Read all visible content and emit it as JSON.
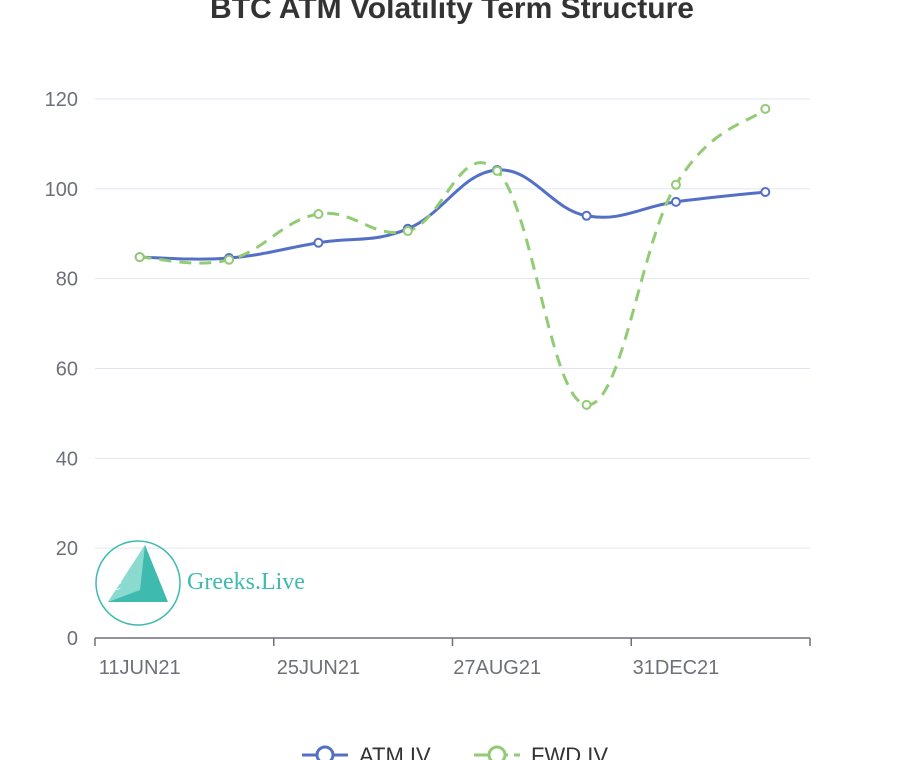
{
  "chart_data": {
    "type": "line",
    "title": "BTC ATM Volatility Term Structure",
    "xlabel": "",
    "ylabel": "",
    "categories": [
      "11JUN21",
      "",
      "25JUN21",
      "",
      "27AUG21",
      "",
      "31DEC21",
      ""
    ],
    "ylim": [
      0,
      120
    ],
    "yticks": [
      0,
      20,
      40,
      60,
      80,
      100,
      120
    ],
    "grid": true,
    "smooth": true,
    "legend_placement": "bottom",
    "series": [
      {
        "name": "ATM IV",
        "color": "#5470c6",
        "style": "solid",
        "values": [
          84.8,
          84.6,
          88.0,
          91.1,
          104.2,
          94.0,
          97.1,
          99.3
        ]
      },
      {
        "name": "FWD IV",
        "color": "#91cc75",
        "style": "dashed",
        "values": [
          84.8,
          84.2,
          94.4,
          90.6,
          104.0,
          51.9,
          100.9,
          117.8
        ]
      }
    ]
  },
  "watermark": {
    "text": "Greeks.Live",
    "color": "#2ab3a6"
  }
}
